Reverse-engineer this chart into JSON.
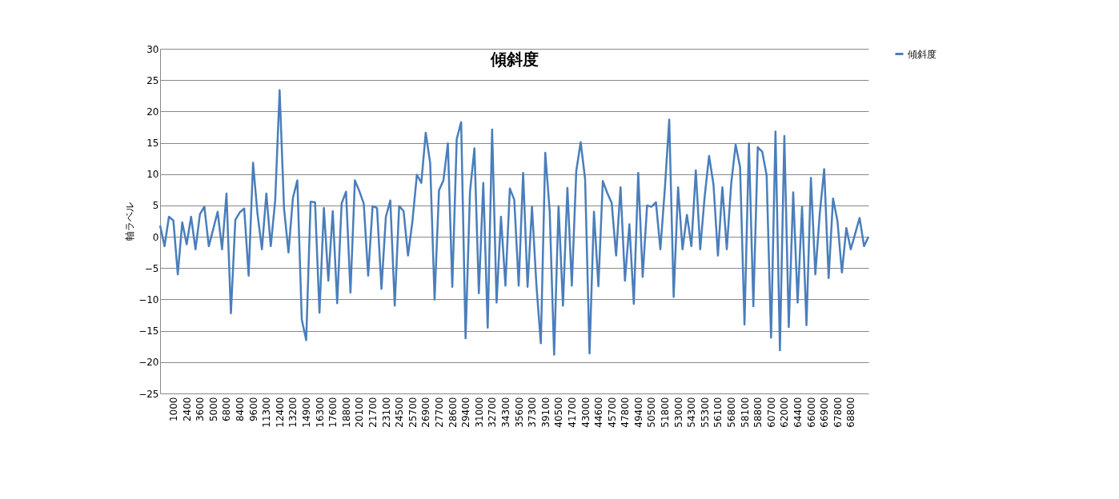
{
  "chart_data": {
    "type": "line",
    "title": "傾斜度",
    "ylabel": "軸ラベル",
    "categories": [
      null,
      null,
      null,
      "1000",
      null,
      null,
      "2400",
      null,
      null,
      "3600",
      null,
      null,
      "5000",
      null,
      null,
      "6800",
      null,
      null,
      "8400",
      null,
      null,
      "9600",
      null,
      null,
      "11300",
      null,
      null,
      "12400",
      null,
      null,
      "13200",
      null,
      null,
      "14900",
      null,
      null,
      "16300",
      null,
      null,
      "17600",
      null,
      null,
      "18800",
      null,
      null,
      "20100",
      null,
      null,
      "21700",
      null,
      null,
      "23100",
      null,
      null,
      "24500",
      null,
      null,
      "25700",
      null,
      null,
      "26900",
      null,
      null,
      "27700",
      null,
      null,
      "28600",
      null,
      null,
      "29400",
      null,
      null,
      "31000",
      null,
      null,
      "32700",
      null,
      null,
      "34300",
      null,
      null,
      "35600",
      null,
      null,
      "37300",
      null,
      null,
      "39100",
      null,
      null,
      "40500",
      null,
      null,
      "41700",
      null,
      null,
      "43000",
      null,
      null,
      "44600",
      null,
      null,
      "45700",
      null,
      null,
      "47800",
      null,
      null,
      "49400",
      null,
      null,
      "50500",
      null,
      null,
      "51800",
      null,
      null,
      "53000",
      null,
      null,
      "54300",
      null,
      null,
      "55300",
      null,
      null,
      "56100",
      null,
      null,
      "56800",
      null,
      null,
      "58100",
      null,
      null,
      "58800",
      null,
      null,
      "60700",
      null,
      null,
      "62000",
      null,
      null,
      "64400",
      null,
      null,
      "66000",
      null,
      null,
      "66900",
      null,
      null,
      "67800",
      null,
      null,
      "68800",
      null,
      null,
      null,
      null
    ],
    "series": [
      {
        "name": "傾斜度",
        "color": "#4a7ebb",
        "values": [
          1.8,
          -1.5,
          3.2,
          2.6,
          -6,
          2.3,
          -1.2,
          3.2,
          -2,
          3.6,
          4.8,
          -1.5,
          1.2,
          4,
          -2,
          6.9,
          -12.2,
          2.7,
          3.9,
          4.5,
          -6.2,
          11.8,
          3.7,
          -2,
          6.9,
          -1.5,
          5.8,
          23.4,
          4.5,
          -2.5,
          6.2,
          9,
          -13.2,
          -16.5,
          5.6,
          5.5,
          -12.1,
          4.6,
          -7,
          4.1,
          -10.6,
          5.3,
          7.2,
          -8.9,
          9,
          7.3,
          5.3,
          -6.2,
          4.9,
          4.6,
          -8.3,
          3.2,
          5.8,
          -11,
          4.9,
          4.1,
          -3,
          2.5,
          9.9,
          8.6,
          16.6,
          11.8,
          -10,
          7.4,
          9,
          14.9,
          -8,
          15.6,
          18.3,
          -16.2,
          7.2,
          14.1,
          -9,
          8.6,
          -14.5,
          17.1,
          -10.5,
          3.2,
          -7.8,
          7.7,
          5.9,
          -7.8,
          10.2,
          -8,
          4.8,
          -7.7,
          -17,
          13.4,
          4.1,
          -18.8,
          4.9,
          -11,
          7.8,
          -7.8,
          10.5,
          15.1,
          9.2,
          -18.6,
          4,
          -7.9,
          8.9,
          7,
          5.4,
          -3,
          7.9,
          -7,
          2,
          -10.7,
          10.2,
          -6.4,
          5,
          4.8,
          5.5,
          -2,
          7.6,
          18.7,
          -9.6,
          7.9,
          -2,
          3.5,
          -1.5,
          10.6,
          -2,
          6.4,
          12.9,
          8.3,
          -3,
          7.9,
          -2,
          8.5,
          14.7,
          11.1,
          -14,
          14.9,
          -11.1,
          14.3,
          13.6,
          9.8,
          -16.1,
          16.8,
          -18.1,
          16.1,
          -14.4,
          7.1,
          -10.5,
          4.8,
          -14.1,
          9.4,
          -6,
          3.7,
          10.8,
          -6.6,
          6.1,
          2.5,
          -5.7,
          1.4,
          -2,
          0.5,
          3,
          -1.5,
          0
        ]
      }
    ],
    "ylim": [
      -25,
      30
    ],
    "yticks": [
      -25,
      -20,
      -15,
      -10,
      -5,
      0,
      5,
      10,
      15,
      20,
      25,
      30
    ],
    "grid": "y",
    "legend": "right",
    "line_style": "solid"
  }
}
